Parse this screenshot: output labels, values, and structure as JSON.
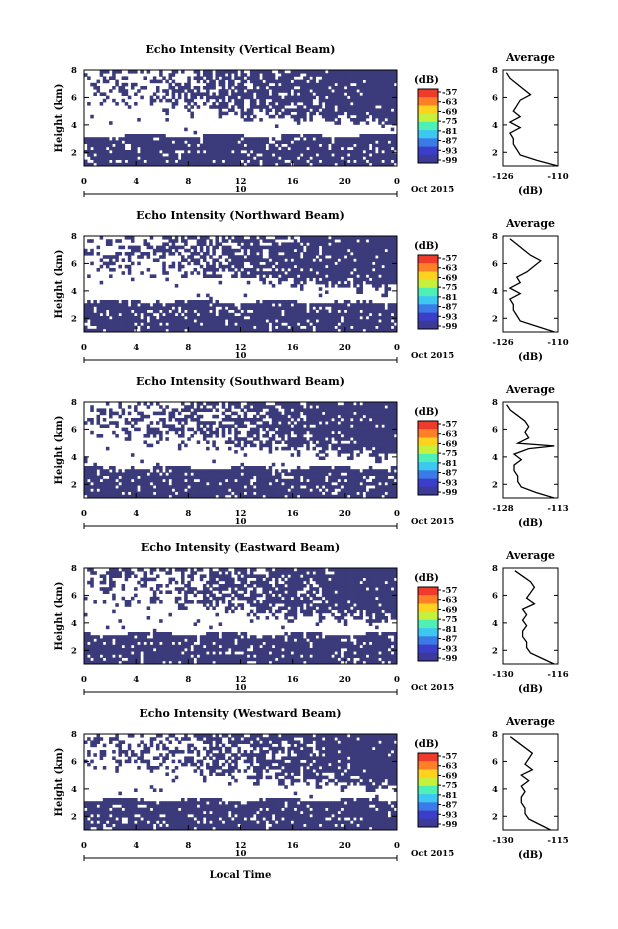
{
  "figure": {
    "xlabel": "Local Time",
    "date_label": "Oct 2015",
    "day_label": "10",
    "unit_label": "(dB)",
    "colorbar_ticks": [
      "-57",
      "-63",
      "-69",
      "-75",
      "-81",
      "-87",
      "-93",
      "-99"
    ],
    "colorbar_colors": [
      "#ef3b2c",
      "#ff7f27",
      "#ffd21f",
      "#c5f03b",
      "#4ff0b5",
      "#3cc8f0",
      "#3a7be8",
      "#3a3ec8",
      "#3b3a98"
    ],
    "fill_color": "#3b3b7b",
    "profile_ylabel": "(dB)"
  },
  "chart_data": [
    {
      "type": "heatmap",
      "title": "Echo Intensity (Vertical Beam)",
      "ylabel": "Height (km)",
      "xlim": [
        0,
        24
      ],
      "ylim": [
        1,
        8
      ],
      "x_ticks": [
        "0",
        "4",
        "8",
        "12",
        "16",
        "20",
        "0"
      ],
      "y_ticks": [
        "2",
        "4",
        "6",
        "8"
      ],
      "profile": {
        "title": "Average",
        "xlim": [
          -126,
          -110
        ],
        "x_ticks": [
          "-126",
          "-110"
        ],
        "y_ticks": [
          "2",
          "4",
          "6",
          "8"
        ],
        "heights": [
          1.0,
          1.4,
          1.8,
          2.2,
          2.6,
          3.0,
          3.4,
          3.8,
          4.2,
          4.6,
          5.0,
          5.4,
          5.8,
          6.2,
          6.6,
          7.0,
          7.4,
          7.8
        ],
        "values": [
          -110,
          -116,
          -121,
          -122,
          -123,
          -123,
          -124,
          -121,
          -124,
          -121,
          -123,
          -122,
          -121,
          -118,
          -120,
          -122,
          -124,
          -125
        ]
      }
    },
    {
      "type": "heatmap",
      "title": "Echo Intensity (Northward Beam)",
      "ylabel": "Height (km)",
      "xlim": [
        0,
        24
      ],
      "ylim": [
        1,
        8
      ],
      "x_ticks": [
        "0",
        "4",
        "8",
        "12",
        "16",
        "20",
        "0"
      ],
      "y_ticks": [
        "2",
        "4",
        "6",
        "8"
      ],
      "profile": {
        "title": "Average",
        "xlim": [
          -126,
          -110
        ],
        "x_ticks": [
          "-126",
          "-110"
        ],
        "y_ticks": [
          "2",
          "4",
          "6",
          "8"
        ],
        "heights": [
          1.0,
          1.4,
          1.8,
          2.2,
          2.6,
          3.0,
          3.4,
          3.8,
          4.2,
          4.6,
          5.0,
          5.4,
          5.8,
          6.2,
          6.6,
          7.0,
          7.4,
          7.8
        ],
        "values": [
          -111,
          -116,
          -121,
          -122,
          -123,
          -123,
          -124,
          -121,
          -124,
          -121,
          -122,
          -119,
          -117,
          -115,
          -118,
          -120,
          -122,
          -124
        ]
      }
    },
    {
      "type": "heatmap",
      "title": "Echo Intensity (Southward Beam)",
      "ylabel": "Height (km)",
      "xlim": [
        0,
        24
      ],
      "ylim": [
        1,
        8
      ],
      "x_ticks": [
        "0",
        "4",
        "8",
        "12",
        "16",
        "20",
        "0"
      ],
      "y_ticks": [
        "2",
        "4",
        "6",
        "8"
      ],
      "profile": {
        "title": "Average",
        "xlim": [
          -128,
          -113
        ],
        "x_ticks": [
          "-128",
          "-113"
        ],
        "y_ticks": [
          "2",
          "4",
          "6",
          "8"
        ],
        "heights": [
          1.0,
          1.4,
          1.8,
          2.2,
          2.6,
          3.0,
          3.4,
          3.8,
          4.2,
          4.6,
          4.8,
          5.0,
          5.4,
          5.8,
          6.2,
          6.6,
          7.0,
          7.4,
          7.8
        ],
        "values": [
          -114,
          -119,
          -123,
          -124,
          -124,
          -125,
          -125,
          -123,
          -125,
          -121,
          -114,
          -124,
          -121,
          -122,
          -121,
          -122,
          -124,
          -126,
          -127
        ]
      }
    },
    {
      "type": "heatmap",
      "title": "Echo Intensity (Eastward Beam)",
      "ylabel": "Height (km)",
      "xlim": [
        0,
        24
      ],
      "ylim": [
        1,
        8
      ],
      "x_ticks": [
        "0",
        "4",
        "8",
        "12",
        "16",
        "20",
        "0"
      ],
      "y_ticks": [
        "2",
        "4",
        "6",
        "8"
      ],
      "profile": {
        "title": "Average",
        "xlim": [
          -130,
          -116
        ],
        "x_ticks": [
          "-130",
          "-116"
        ],
        "y_ticks": [
          "2",
          "4",
          "6",
          "8"
        ],
        "heights": [
          1.0,
          1.4,
          1.8,
          2.2,
          2.6,
          3.0,
          3.4,
          3.8,
          4.2,
          4.6,
          5.0,
          5.4,
          5.8,
          6.2,
          6.6,
          7.0,
          7.4,
          7.8
        ],
        "values": [
          -117,
          -120,
          -123,
          -124,
          -124,
          -125,
          -125,
          -124,
          -125,
          -124,
          -125,
          -122,
          -124,
          -123,
          -122,
          -123,
          -125,
          -127
        ]
      }
    },
    {
      "type": "heatmap",
      "title": "Echo Intensity (Westward Beam)",
      "ylabel": "Height (km)",
      "xlim": [
        0,
        24
      ],
      "ylim": [
        1,
        8
      ],
      "x_ticks": [
        "0",
        "4",
        "8",
        "12",
        "16",
        "20",
        "0"
      ],
      "y_ticks": [
        "2",
        "4",
        "6",
        "8"
      ],
      "profile": {
        "title": "Average",
        "xlim": [
          -130,
          -115
        ],
        "x_ticks": [
          "-130",
          "-115"
        ],
        "y_ticks": [
          "2",
          "4",
          "6",
          "8"
        ],
        "heights": [
          1.0,
          1.4,
          1.8,
          2.2,
          2.6,
          3.0,
          3.4,
          3.8,
          4.2,
          4.6,
          5.0,
          5.4,
          5.8,
          6.2,
          6.6,
          7.0,
          7.4,
          7.8
        ],
        "values": [
          -117,
          -120,
          -123,
          -124,
          -124,
          -125,
          -125,
          -124,
          -125,
          -123,
          -125,
          -122,
          -124,
          -123,
          -122,
          -124,
          -126,
          -128
        ]
      }
    }
  ]
}
